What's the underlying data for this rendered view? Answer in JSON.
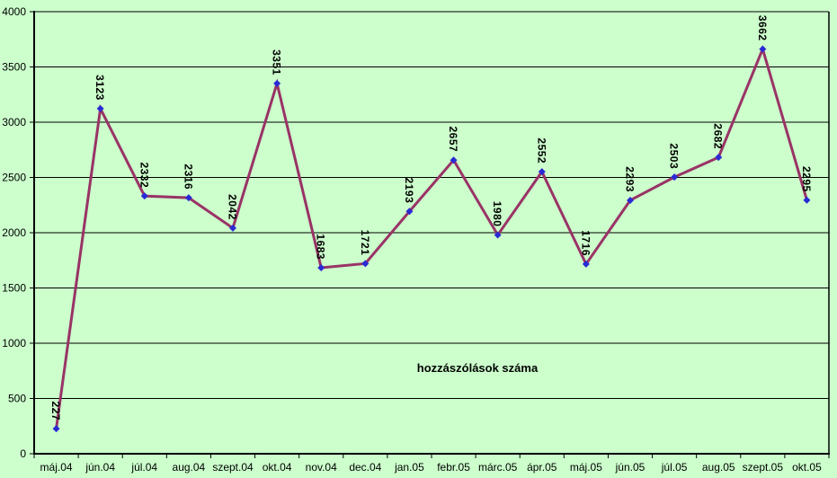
{
  "chart_data": {
    "type": "line",
    "title": "hozzászólások száma",
    "categories": [
      "máj.04",
      "jún.04",
      "júl.04",
      "aug.04",
      "szept.04",
      "okt.04",
      "nov.04",
      "dec.04",
      "jan.05",
      "febr.05",
      "márc.05",
      "ápr.05",
      "máj.05",
      "jún.05",
      "júl.05",
      "aug.05",
      "szept.05",
      "okt.05"
    ],
    "values": [
      227,
      3123,
      2332,
      2316,
      2042,
      3351,
      1683,
      1721,
      2193,
      2657,
      1980,
      2552,
      1716,
      2293,
      2503,
      2682,
      3662,
      2295
    ],
    "xlabel": "",
    "ylabel": "",
    "ylim": [
      0,
      4000
    ],
    "y_tick_step": 500,
    "y_tick_labels": [
      "0",
      "500",
      "1000",
      "1500",
      "2000",
      "2500",
      "3000",
      "3500",
      "4000"
    ],
    "grid": true,
    "legend_position": "none",
    "data_labels_rotation": 90,
    "marker_shape": "diamond",
    "colors": {
      "background": "#CCFFCC",
      "line": "#993366",
      "marker": "#2A2AD4",
      "grid": "#000000",
      "text": "#000000"
    }
  }
}
